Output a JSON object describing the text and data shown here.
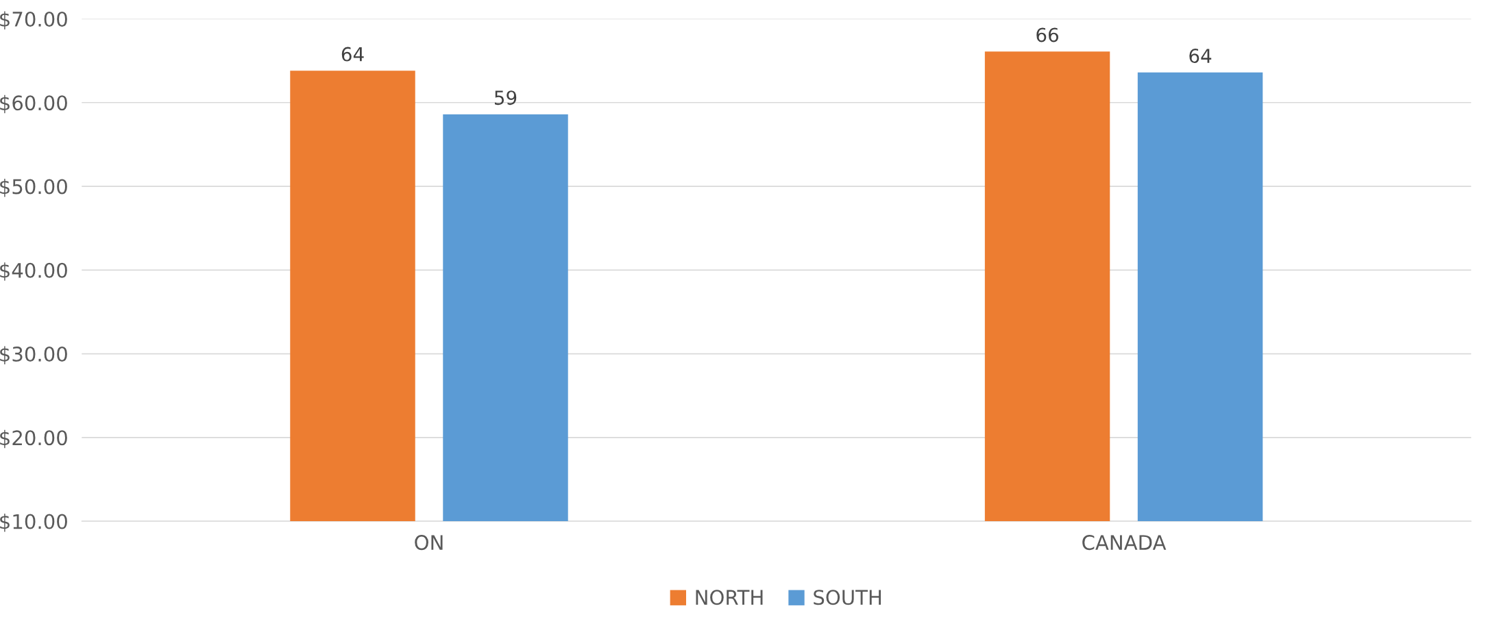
{
  "chart_data": {
    "type": "bar",
    "categories": [
      "ON",
      "CANADA"
    ],
    "series": [
      {
        "name": "NORTH",
        "color": "#ed7d31",
        "values": [
          63.8,
          66.1
        ],
        "value_labels": [
          "64",
          "66"
        ]
      },
      {
        "name": "SOUTH",
        "color": "#5b9bd5",
        "values": [
          58.6,
          63.6
        ],
        "value_labels": [
          "59",
          "64"
        ]
      }
    ],
    "ylim": [
      10,
      70
    ],
    "yticks": [
      {
        "value": 10,
        "label": "$10.00"
      },
      {
        "value": 20,
        "label": "$20.00"
      },
      {
        "value": 30,
        "label": "$30.00"
      },
      {
        "value": 40,
        "label": "$40.00"
      },
      {
        "value": 50,
        "label": "$50.00"
      },
      {
        "value": 60,
        "label": "$60.00"
      },
      {
        "value": 70,
        "label": "$70.00"
      }
    ],
    "grid": "y",
    "legend": "bottom"
  }
}
